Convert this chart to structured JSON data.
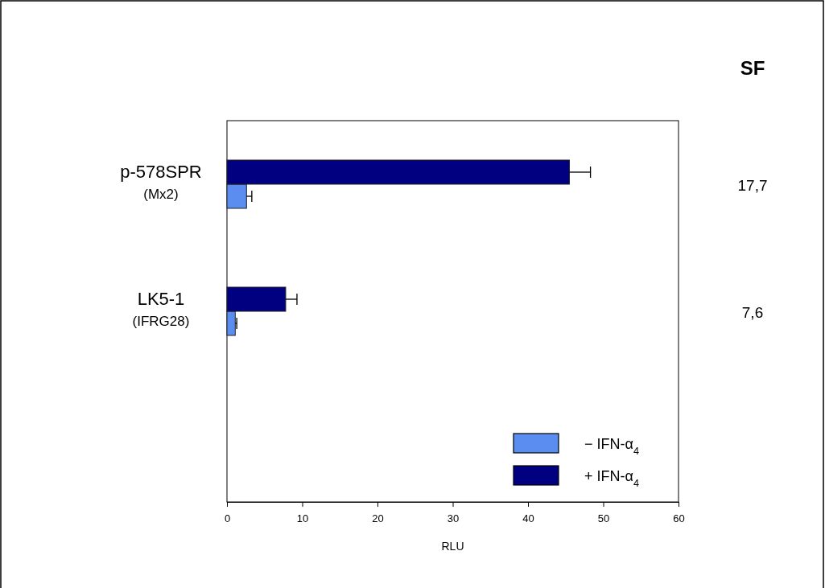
{
  "chart_data": {
    "type": "bar",
    "orientation": "horizontal",
    "categories": [
      "p-578SPR\n(Mx2)",
      "LK5-1\n(IFRG28)",
      null
    ],
    "series": [
      {
        "name": "− IFN-α$_{4}$",
        "color": "#5b8cf0",
        "values": [
          2.6,
          1.1,
          null
        ],
        "errors": [
          0.7,
          0.2,
          null
        ]
      },
      {
        "name": "+ IFN-α$_{4}$",
        "color": "#000080",
        "values": [
          45.5,
          7.8,
          null
        ],
        "errors": [
          2.8,
          1.5,
          null
        ]
      }
    ],
    "xlabel": "RLU",
    "xlim": [
      0,
      60
    ],
    "xticks": [
      0,
      10,
      20,
      30,
      40,
      50,
      60
    ],
    "legend": "bottom right",
    "grid": false,
    "annotations": [
      "SF",
      "17,7",
      "7,6"
    ]
  }
}
